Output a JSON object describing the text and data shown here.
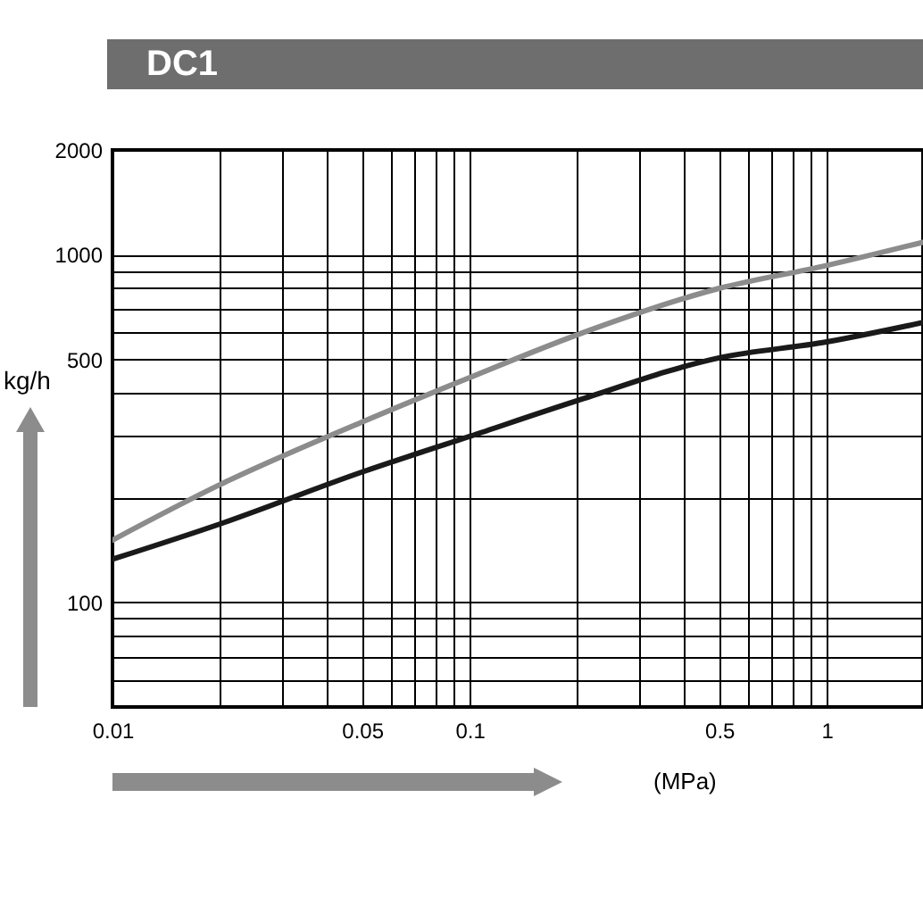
{
  "chart_data": {
    "type": "line",
    "title": "DC1",
    "xlabel": "(MPa)",
    "ylabel": "kg/h",
    "log": "xy",
    "grid": true,
    "line_style": "solid",
    "marker": "none",
    "x": [
      0.01,
      0.02,
      0.05,
      0.1,
      0.2,
      0.5,
      1,
      1.86
    ],
    "series": [
      {
        "color": "#8c8c8c",
        "values": [
          151,
          218,
          330,
          443,
          588,
          800,
          931,
          1086
        ]
      },
      {
        "color": "#1a1a1a",
        "values": [
          133,
          168,
          237,
          300,
          380,
          505,
          561,
          638
        ]
      }
    ],
    "xlim": [
      0.01,
      1.86
    ],
    "xticks": [
      0.01,
      {
        "value": 0.02,
        "label": null
      },
      {
        "value": 0.03,
        "label": null
      },
      {
        "value": 0.04,
        "label": null
      },
      0.05,
      {
        "value": 0.06,
        "label": null
      },
      {
        "value": 0.07,
        "label": null
      },
      {
        "value": 0.08,
        "label": null
      },
      {
        "value": 0.09,
        "label": null
      },
      0.1,
      {
        "value": 0.2,
        "label": null
      },
      {
        "value": 0.3,
        "label": null
      },
      {
        "value": 0.4,
        "label": null
      },
      0.5,
      {
        "value": 0.6,
        "label": null
      },
      {
        "value": 0.7,
        "label": null
      },
      {
        "value": 0.8,
        "label": null
      },
      {
        "value": 0.9,
        "label": null
      },
      1
    ],
    "ylim": [
      50,
      2000
    ],
    "yticks": [
      {
        "value": 60,
        "label": null
      },
      {
        "value": 70,
        "label": null
      },
      {
        "value": 80,
        "label": null
      },
      {
        "value": 90,
        "label": null
      },
      100,
      {
        "value": 200,
        "label": null
      },
      {
        "value": 300,
        "label": null
      },
      {
        "value": 400,
        "label": null
      },
      500,
      {
        "value": 600,
        "label": null
      },
      {
        "value": 700,
        "label": null
      },
      {
        "value": 800,
        "label": null
      },
      {
        "value": 900,
        "label": null
      },
      1000,
      2000
    ]
  }
}
